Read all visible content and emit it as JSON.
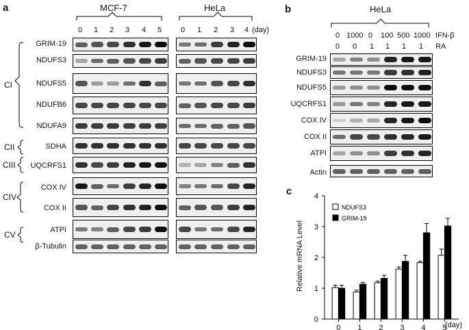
{
  "panel_a": {
    "letter": "a",
    "mcf7_label": "MCF-7",
    "hela_label": "HeLa",
    "mcf7_days": [
      "0",
      "1",
      "2",
      "3",
      "4",
      "5"
    ],
    "hela_days": [
      "0",
      "1",
      "2",
      "3",
      "4"
    ],
    "day_unit": "(day)",
    "complexes": [
      "CI",
      "CII",
      "CIII",
      "CIV",
      "CV"
    ],
    "proteins": [
      "GRIM-19",
      "NDUFS3",
      "NDUFS5",
      "NDUFB6",
      "NDUFA9",
      "SDHA",
      "UQCRFS1",
      "COX IV",
      "COX II",
      "ATPI",
      "β-Tubulin"
    ]
  },
  "panel_b": {
    "letter": "b",
    "cell_line": "HeLa",
    "ifn_values": [
      "0",
      "1000",
      "0",
      "100",
      "500",
      "1000"
    ],
    "ifn_label": "IFN-β",
    "ra_values": [
      "0",
      "0",
      "1",
      "1",
      "1",
      "1"
    ],
    "ra_label": "RA",
    "proteins": [
      "GRIM-19",
      "NDUFS3",
      "NDUFS5",
      "UQCRFS1",
      "COX IV",
      "COX II",
      "ATPI",
      "Actin"
    ]
  },
  "panel_c": {
    "letter": "c"
  },
  "chart_data": {
    "type": "bar",
    "categories": [
      "0",
      "1",
      "2",
      "3",
      "4",
      "5"
    ],
    "xlabel": "(day)",
    "ylabel": "Relative mRNA Level",
    "ylim": [
      0,
      4
    ],
    "yticks": [
      "0",
      "1",
      "2",
      "3",
      "4"
    ],
    "legend_position": "top-left",
    "series": [
      {
        "name": "NDUFS3",
        "color": "#ffffff",
        "values": [
          1.02,
          0.88,
          1.18,
          1.62,
          1.83,
          2.07
        ],
        "errors": [
          0.08,
          0.06,
          0.05,
          0.07,
          0.05,
          0.2
        ]
      },
      {
        "name": "GRIM-19",
        "color": "#000000",
        "values": [
          1.0,
          1.13,
          1.32,
          1.87,
          2.8,
          3.02
        ],
        "errors": [
          0.1,
          0.06,
          0.1,
          0.2,
          0.3,
          0.25
        ]
      }
    ]
  }
}
